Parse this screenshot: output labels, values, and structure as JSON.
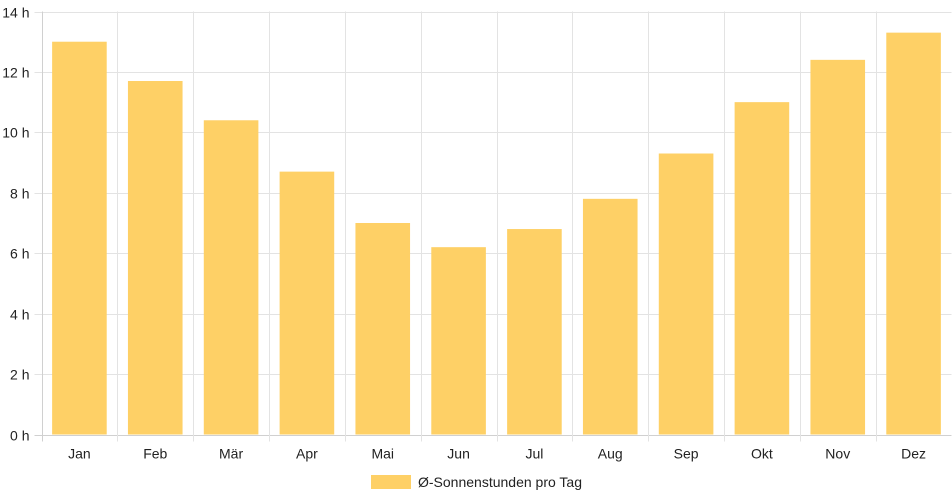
{
  "chart_data": {
    "type": "bar",
    "title": "",
    "xlabel": "",
    "ylabel": "",
    "categories": [
      "Jan",
      "Feb",
      "Mär",
      "Apr",
      "Mai",
      "Jun",
      "Jul",
      "Aug",
      "Sep",
      "Okt",
      "Nov",
      "Dez"
    ],
    "series": [
      {
        "name": "Ø-Sonnenstunden pro Tag",
        "color": "#fed066",
        "values": [
          13.0,
          11.7,
          10.4,
          8.7,
          7.0,
          6.2,
          6.8,
          7.8,
          9.3,
          11.0,
          12.4,
          13.3
        ]
      }
    ],
    "ylim": [
      0,
      14
    ],
    "y_ticks": [
      0,
      2,
      4,
      6,
      8,
      10,
      12,
      14
    ],
    "y_tick_suffix": " h",
    "grid": true,
    "legend_position": "bottom"
  }
}
